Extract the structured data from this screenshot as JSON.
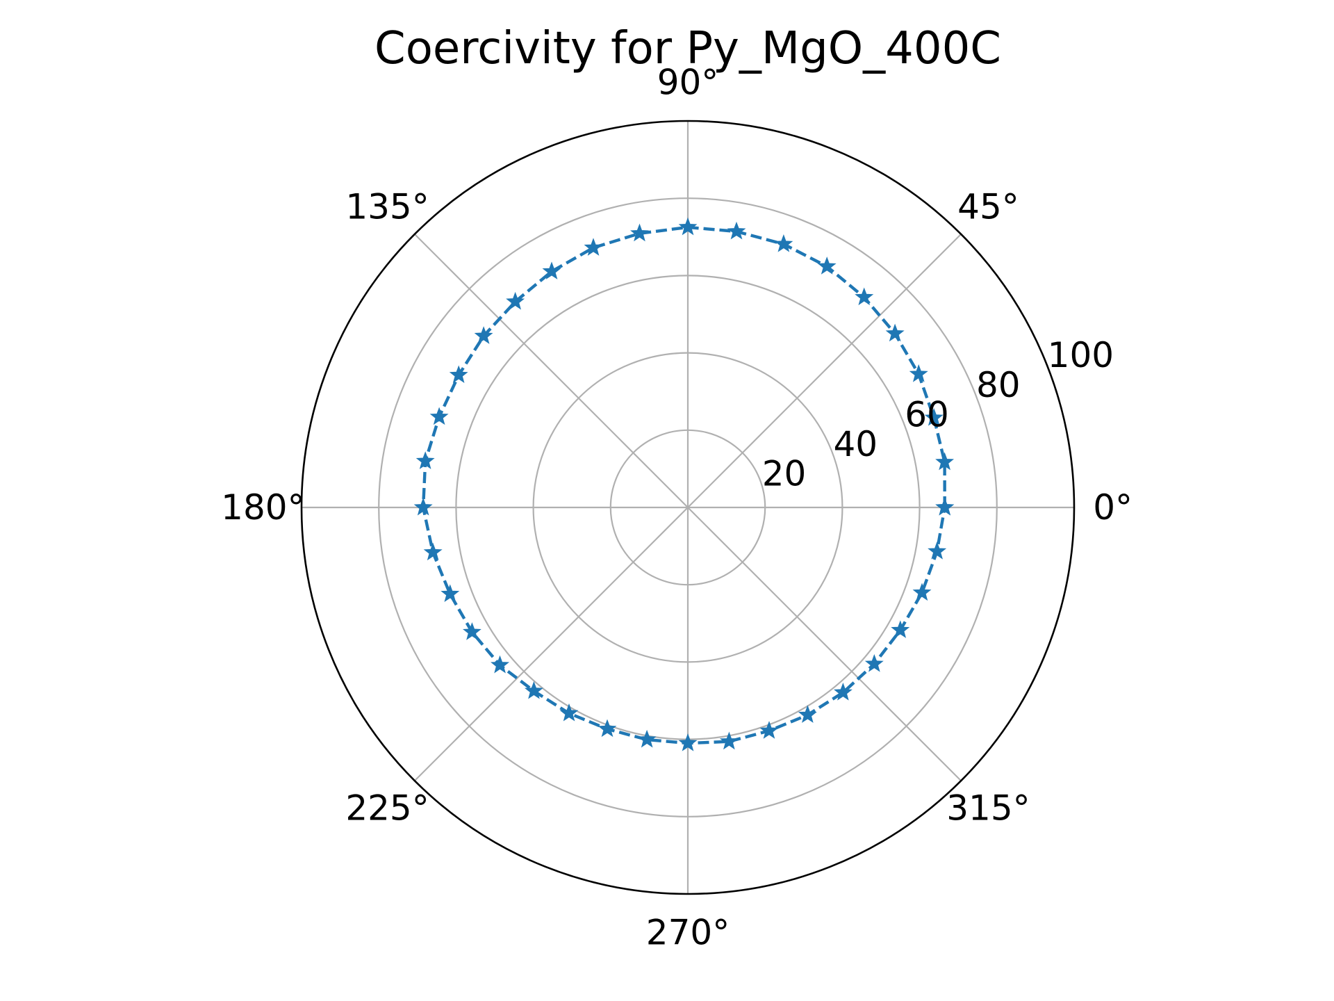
{
  "chart_data": {
    "type": "polar-line",
    "title": "Coercivity for Py_MgO_400C",
    "theta_unit": "degrees",
    "theta_tick_labels": [
      "0°",
      "45°",
      "90°",
      "135°",
      "180°",
      "225°",
      "270°",
      "315°"
    ],
    "theta_ticks": [
      0,
      45,
      90,
      135,
      180,
      225,
      270,
      315
    ],
    "r_ticks": [
      20,
      40,
      60,
      80,
      100
    ],
    "r_tick_labels": [
      "20",
      "40",
      "60",
      "80",
      "100"
    ],
    "rlim": [
      0,
      100
    ],
    "grid": true,
    "legend": "none",
    "series": [
      {
        "line_style": "dashed",
        "marker": "star",
        "color": "#1f77b4",
        "theta": [
          0,
          10,
          20,
          30,
          40,
          50,
          60,
          70,
          80,
          90,
          100,
          110,
          120,
          130,
          140,
          150,
          160,
          170,
          180,
          190,
          200,
          210,
          220,
          230,
          240,
          250,
          260,
          270,
          280,
          290,
          300,
          310,
          320,
          330,
          340,
          350,
          360
        ],
        "r": [
          66.5,
          67.5,
          67.8,
          69.0,
          70.0,
          71.0,
          72.0,
          72.5,
          72.5,
          72.5,
          72.0,
          71.5,
          70.5,
          69.5,
          69.0,
          68.5,
          68.5,
          69.0,
          68.5,
          67.0,
          65.5,
          64.5,
          63.5,
          62.0,
          61.5,
          61.0,
          61.0,
          61.0,
          61.5,
          61.5,
          62.0,
          62.5,
          63.0,
          63.5,
          64.5,
          65.5,
          66.5
        ]
      }
    ]
  },
  "colors": {
    "series": "#1f77b4",
    "grid": "#b0b0b0",
    "frame": "#000000"
  }
}
